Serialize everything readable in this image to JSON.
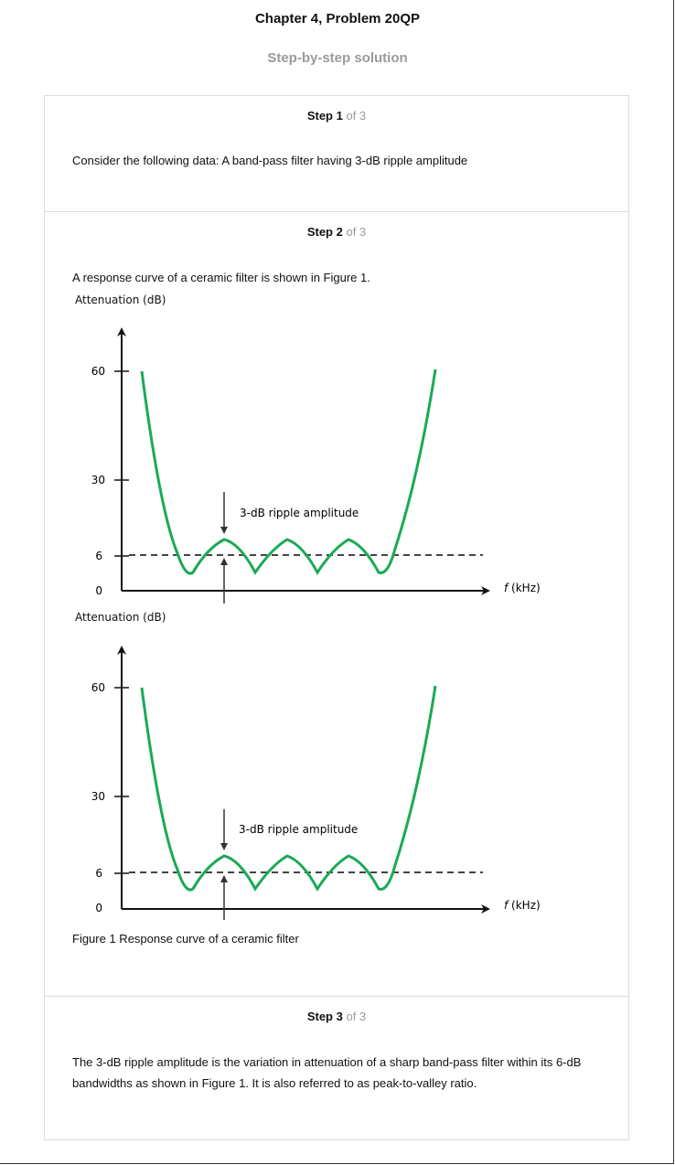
{
  "header": {
    "title": "Chapter 4, Problem 20QP",
    "subtitle": "Step-by-step solution"
  },
  "steps": [
    {
      "num": "Step 1",
      "of": "of 3",
      "text": "Consider the following data: A band-pass filter having 3-dB ripple amplitude"
    },
    {
      "num": "Step 2",
      "of": "of 3",
      "text": "A response curve of a ceramic filter is shown in Figure 1.",
      "figure_caption": "Figure 1 Response curve of a ceramic filter"
    },
    {
      "num": "Step 3",
      "of": "of 3",
      "text": "The 3-dB ripple amplitude is the variation in attenuation of a sharp band-pass filter within its 6-dB bandwidths as shown in Figure 1. It is also referred to as peak-to-valley ratio."
    }
  ],
  "figure": {
    "y_axis_label": "Attenuation (dB)",
    "x_axis_label_italic": "f",
    "x_axis_label_rest": " (kHz)",
    "annotation": "3-dB ripple amplitude",
    "ticks": [
      "60",
      "30",
      "6",
      "0"
    ],
    "curve_color": "#1aaa55",
    "dash_color": "#444444"
  },
  "chart_data": [
    {
      "type": "line",
      "title": "",
      "ylabel": "Attenuation (dB)",
      "xlabel": "f (kHz)",
      "yticks": [
        0,
        6,
        30,
        60
      ],
      "reference_line": 6,
      "annotation": "3-dB ripple amplitude",
      "series": [
        {
          "values_description_points": [
            [
              0.06,
              60
            ],
            [
              0.2,
              4
            ],
            [
              0.28,
              8
            ],
            [
              0.36,
              4
            ],
            [
              0.44,
              8
            ],
            [
              0.52,
              4
            ],
            [
              0.6,
              8
            ],
            [
              0.68,
              4
            ],
            [
              0.84,
              60
            ]
          ]
        }
      ]
    },
    {
      "type": "line",
      "title": "",
      "ylabel": "Attenuation (dB)",
      "xlabel": "f (kHz)",
      "yticks": [
        0,
        6,
        30,
        60
      ],
      "reference_line": 6,
      "annotation": "3-dB ripple amplitude",
      "series": [
        {
          "values_description_points": [
            [
              0.06,
              60
            ],
            [
              0.2,
              4
            ],
            [
              0.28,
              8
            ],
            [
              0.36,
              4
            ],
            [
              0.44,
              8
            ],
            [
              0.52,
              4
            ],
            [
              0.6,
              8
            ],
            [
              0.68,
              4
            ],
            [
              0.84,
              60
            ]
          ]
        }
      ]
    }
  ]
}
